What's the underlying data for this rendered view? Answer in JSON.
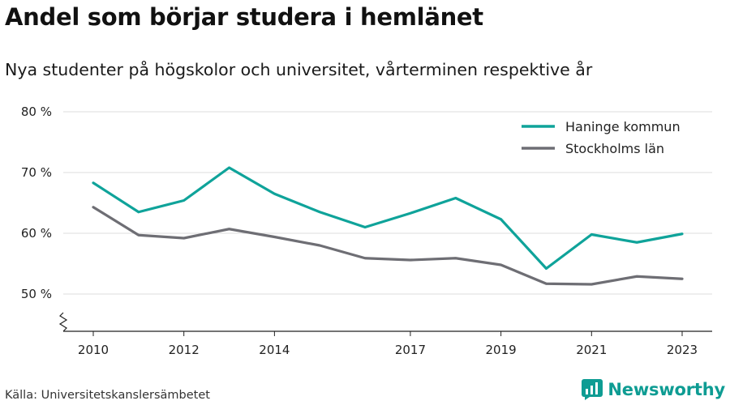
{
  "header": {
    "title": "Andel som börjar studera i hemlänet",
    "subtitle": "Nya studenter på högskolor och universitet, vårterminen respektive år"
  },
  "footer": {
    "source": "Källa: Universitetskanslersämbetet",
    "brand": "Newsworthy"
  },
  "colors": {
    "haninge": "#0fa39a",
    "stockholm": "#6e6e74",
    "grid": "#dcdcdc",
    "brand": "#0e9c93"
  },
  "chart_data": {
    "type": "line",
    "title": "Andel som börjar studera i hemlänet",
    "subtitle": "Nya studenter på högskolor och universitet, vårterminen respektive år",
    "x": [
      2010,
      2011,
      2012,
      2013,
      2014,
      2015,
      2016,
      2017,
      2018,
      2019,
      2020,
      2021,
      2022,
      2023
    ],
    "x_tick_labels": [
      "2010",
      "2012",
      "2014",
      "2017",
      "2019",
      "2021",
      "2023"
    ],
    "y_tick_labels": [
      "50 %",
      "60 %",
      "70 %",
      "80 %"
    ],
    "y_ticks": [
      50,
      60,
      70,
      80
    ],
    "ylim": [
      44,
      80
    ],
    "y_axis_break": true,
    "grid": true,
    "legend_position": "top-right",
    "series": [
      {
        "name": "Haninge kommun",
        "color": "#0fa39a",
        "values": [
          68.3,
          63.5,
          65.4,
          70.8,
          66.5,
          63.5,
          61.0,
          63.3,
          65.8,
          62.3,
          54.2,
          59.8,
          58.5,
          59.9
        ]
      },
      {
        "name": "Stockholms län",
        "color": "#6e6e74",
        "values": [
          64.3,
          59.7,
          59.2,
          60.7,
          59.4,
          58.0,
          55.9,
          55.6,
          55.9,
          54.8,
          51.7,
          51.6,
          52.9,
          52.5
        ]
      }
    ]
  }
}
